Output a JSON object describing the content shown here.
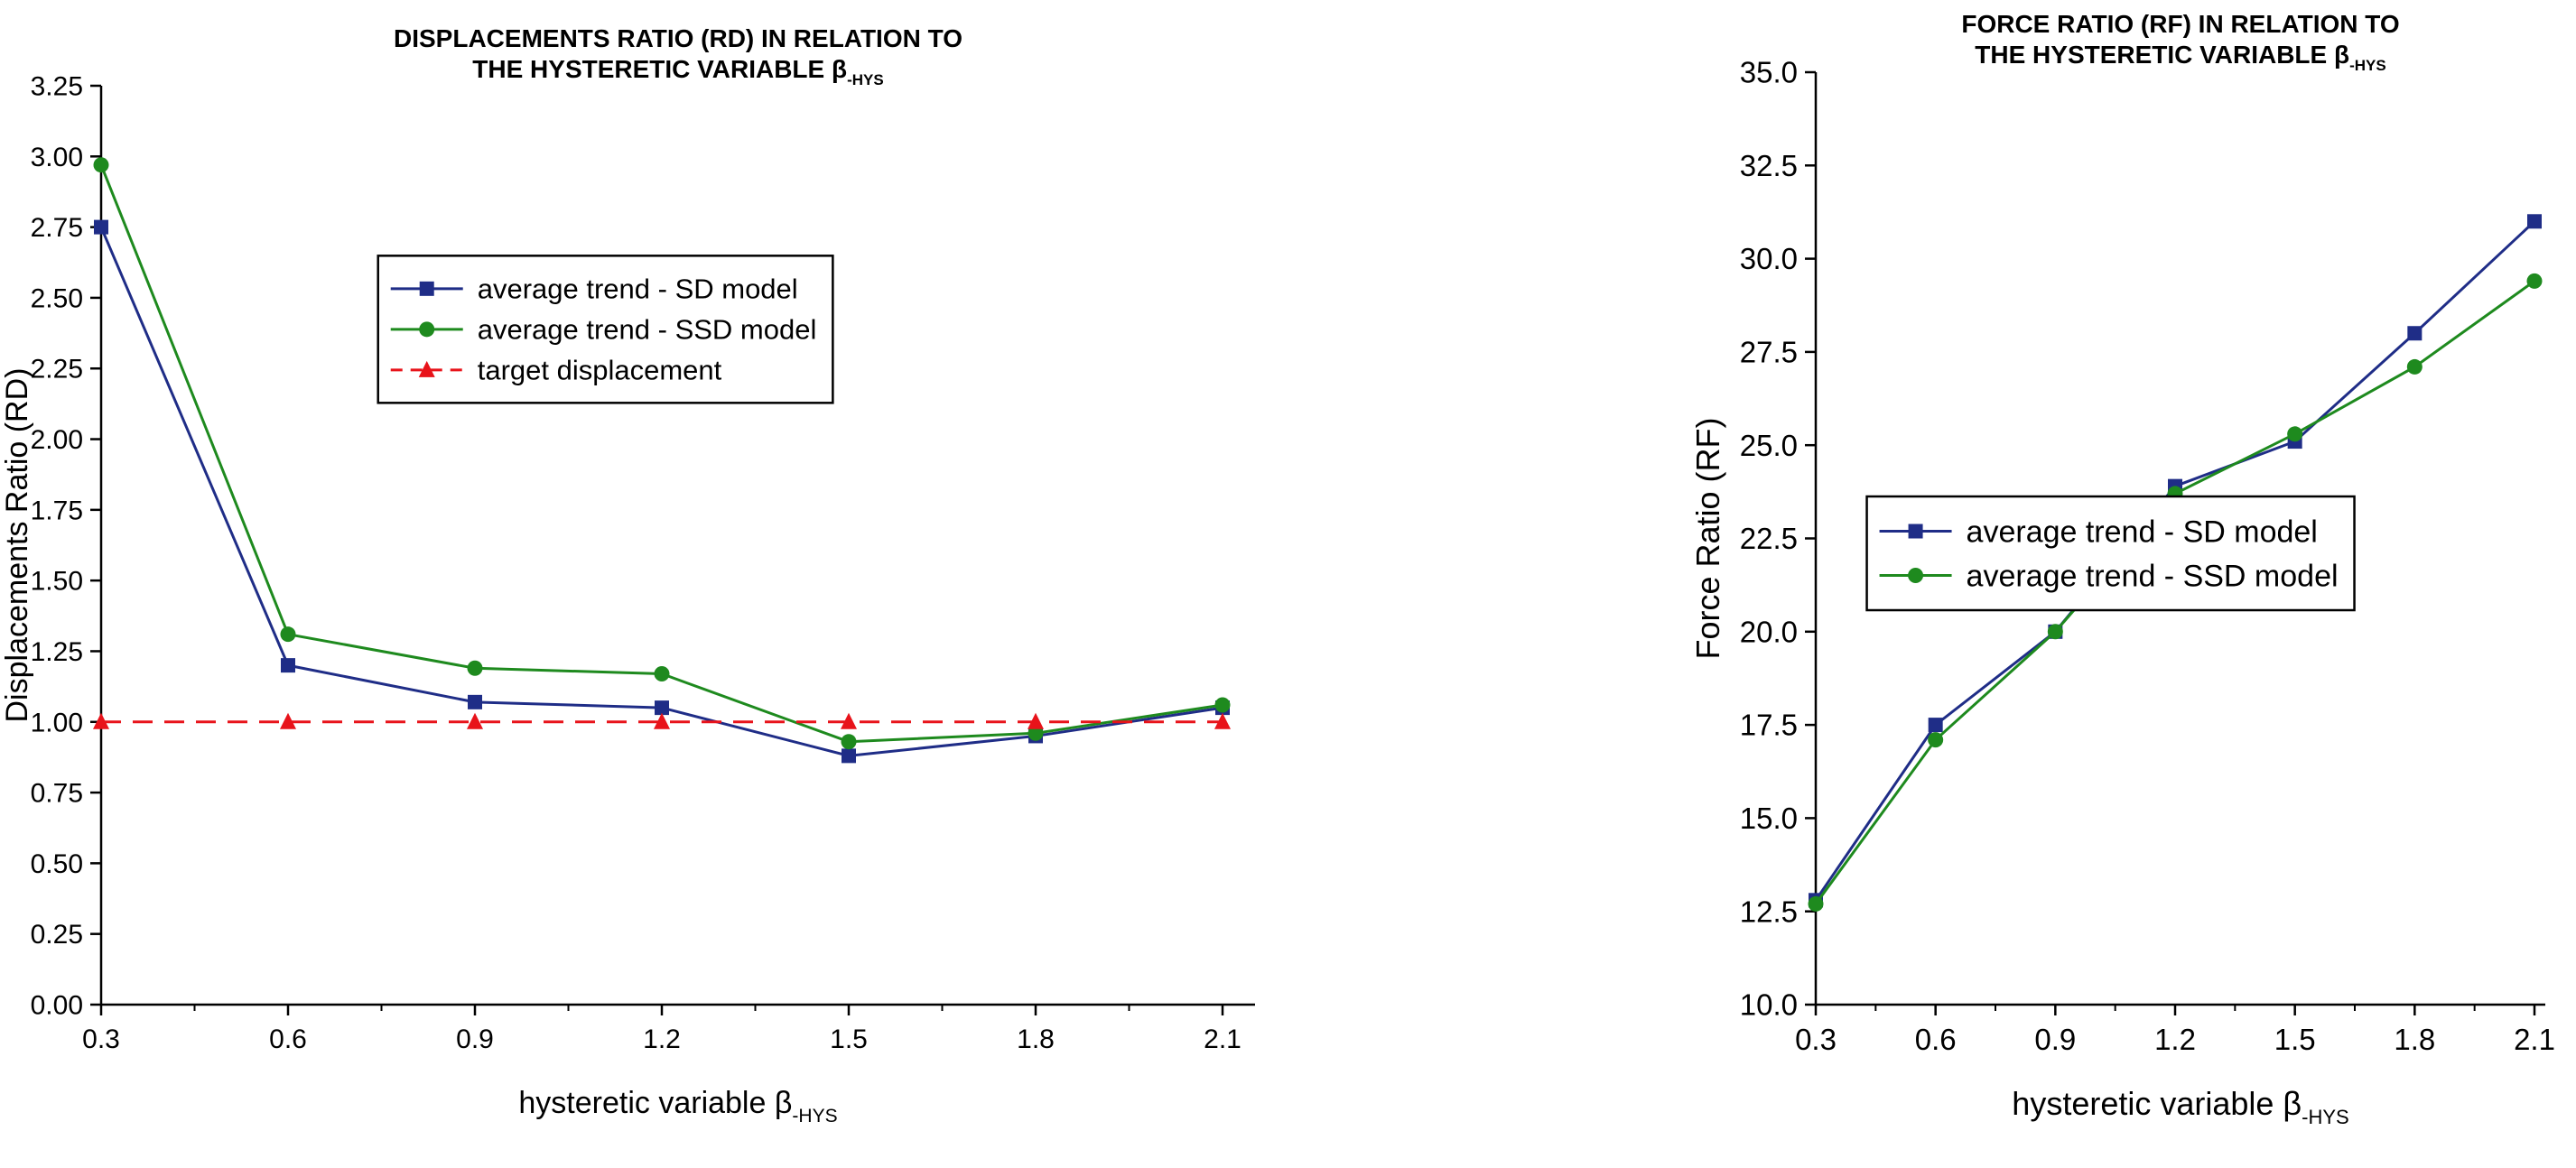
{
  "colors": {
    "background": "#ffffff",
    "text": "#000000",
    "axis": "#000000",
    "sd_model": "#1f2d87",
    "ssd_model": "#1e8a1e",
    "target": "#e8131a"
  },
  "chart_data": [
    {
      "type": "line",
      "title_lines": [
        "DISPLACEMENTS RATIO (RD) IN RELATION TO",
        "THE HYSTERETIC VARIABLE β-HYS"
      ],
      "xlabel": "hysteretic variable β-HYS",
      "ylabel": "Displacements Ratio (RD)",
      "categories": [
        "0.3",
        "0.6",
        "0.9",
        "1.2",
        "1.5",
        "1.8",
        "2.1"
      ],
      "ylim": [
        0.0,
        3.25
      ],
      "ytick_step": 0.25,
      "ytick_decimals": 2,
      "grid": false,
      "legend_position": "inside-middle-left",
      "series": [
        {
          "name": "average trend - SD model",
          "color": "#1f2d87",
          "marker": "square",
          "line": "solid",
          "values": [
            2.75,
            1.2,
            1.07,
            1.05,
            0.88,
            0.95,
            1.05
          ]
        },
        {
          "name": "average trend - SSD model",
          "color": "#1e8a1e",
          "marker": "circle",
          "line": "solid",
          "values": [
            2.97,
            1.31,
            1.19,
            1.17,
            0.93,
            0.96,
            1.06
          ]
        },
        {
          "name": "target displacement",
          "color": "#e8131a",
          "marker": "triangle",
          "line": "dashed",
          "values": [
            1.0,
            1.0,
            1.0,
            1.0,
            1.0,
            1.0,
            1.0
          ]
        }
      ]
    },
    {
      "type": "line",
      "title_lines": [
        "FORCE RATIO (RF) IN RELATION TO",
        "THE HYSTERETIC VARIABLE β-HYS"
      ],
      "xlabel": "hysteretic variable β-HYS",
      "ylabel": "Force Ratio (RF)",
      "categories": [
        "0.3",
        "0.6",
        "0.9",
        "1.2",
        "1.5",
        "1.8",
        "2.1"
      ],
      "ylim": [
        10.0,
        35.0
      ],
      "ytick_step": 2.5,
      "ytick_decimals": 1,
      "grid": false,
      "legend_position": "inside-center",
      "series": [
        {
          "name": "average trend - SD model",
          "color": "#1f2d87",
          "marker": "square",
          "line": "solid",
          "values": [
            12.8,
            17.5,
            20.0,
            23.9,
            25.1,
            28.0,
            31.0
          ]
        },
        {
          "name": "average trend - SSD model",
          "color": "#1e8a1e",
          "marker": "circle",
          "line": "solid",
          "values": [
            12.7,
            17.1,
            20.0,
            23.7,
            25.3,
            27.1,
            29.4
          ]
        }
      ]
    }
  ]
}
